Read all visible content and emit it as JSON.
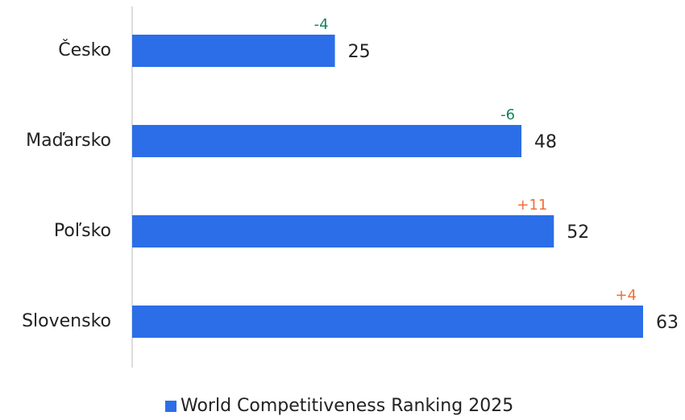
{
  "chart_data": {
    "type": "bar",
    "orientation": "horizontal",
    "categories": [
      "Česko",
      "Maďarsko",
      "Poľsko",
      "Slovensko"
    ],
    "series": [
      {
        "name": "World Competitiveness Ranking 2025",
        "color": "#2b6ee8",
        "values": [
          25,
          48,
          52,
          63
        ]
      }
    ],
    "changes": [
      -4,
      -6,
      11,
      4
    ],
    "change_labels": [
      "-4",
      "-6",
      "+11",
      "+4"
    ],
    "change_colors": {
      "negative": "#14855a",
      "positive": "#f07038"
    },
    "legend": "bottom"
  }
}
